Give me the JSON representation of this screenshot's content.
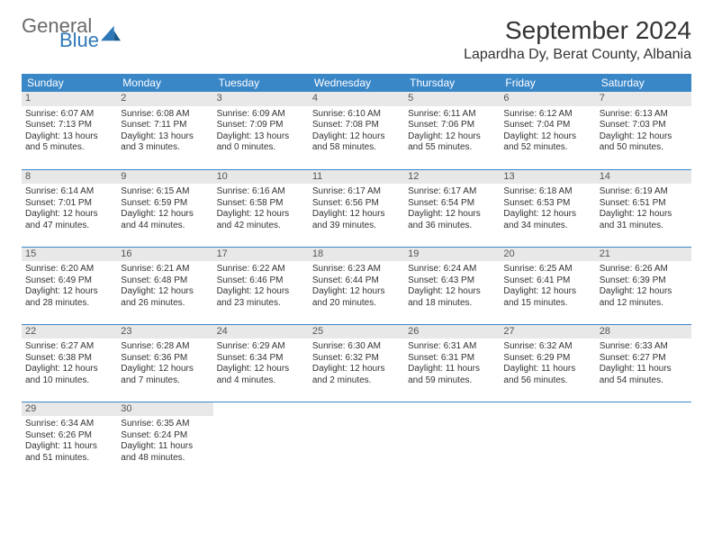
{
  "brand": {
    "word1": "General",
    "word2": "Blue"
  },
  "title": "September 2024",
  "location": "Lapardha Dy, Berat County, Albania",
  "colors": {
    "header_bg": "#3a87c8",
    "header_text": "#ffffff",
    "daynum_bg": "#e8e8e8",
    "rule": "#3a87c8",
    "brand_gray": "#6a6a6a",
    "brand_blue": "#2f78b8"
  },
  "weekdays": [
    "Sunday",
    "Monday",
    "Tuesday",
    "Wednesday",
    "Thursday",
    "Friday",
    "Saturday"
  ],
  "days": [
    {
      "n": 1,
      "sunrise": "6:07 AM",
      "sunset": "7:13 PM",
      "daylight": "13 hours and 5 minutes."
    },
    {
      "n": 2,
      "sunrise": "6:08 AM",
      "sunset": "7:11 PM",
      "daylight": "13 hours and 3 minutes."
    },
    {
      "n": 3,
      "sunrise": "6:09 AM",
      "sunset": "7:09 PM",
      "daylight": "13 hours and 0 minutes."
    },
    {
      "n": 4,
      "sunrise": "6:10 AM",
      "sunset": "7:08 PM",
      "daylight": "12 hours and 58 minutes."
    },
    {
      "n": 5,
      "sunrise": "6:11 AM",
      "sunset": "7:06 PM",
      "daylight": "12 hours and 55 minutes."
    },
    {
      "n": 6,
      "sunrise": "6:12 AM",
      "sunset": "7:04 PM",
      "daylight": "12 hours and 52 minutes."
    },
    {
      "n": 7,
      "sunrise": "6:13 AM",
      "sunset": "7:03 PM",
      "daylight": "12 hours and 50 minutes."
    },
    {
      "n": 8,
      "sunrise": "6:14 AM",
      "sunset": "7:01 PM",
      "daylight": "12 hours and 47 minutes."
    },
    {
      "n": 9,
      "sunrise": "6:15 AM",
      "sunset": "6:59 PM",
      "daylight": "12 hours and 44 minutes."
    },
    {
      "n": 10,
      "sunrise": "6:16 AM",
      "sunset": "6:58 PM",
      "daylight": "12 hours and 42 minutes."
    },
    {
      "n": 11,
      "sunrise": "6:17 AM",
      "sunset": "6:56 PM",
      "daylight": "12 hours and 39 minutes."
    },
    {
      "n": 12,
      "sunrise": "6:17 AM",
      "sunset": "6:54 PM",
      "daylight": "12 hours and 36 minutes."
    },
    {
      "n": 13,
      "sunrise": "6:18 AM",
      "sunset": "6:53 PM",
      "daylight": "12 hours and 34 minutes."
    },
    {
      "n": 14,
      "sunrise": "6:19 AM",
      "sunset": "6:51 PM",
      "daylight": "12 hours and 31 minutes."
    },
    {
      "n": 15,
      "sunrise": "6:20 AM",
      "sunset": "6:49 PM",
      "daylight": "12 hours and 28 minutes."
    },
    {
      "n": 16,
      "sunrise": "6:21 AM",
      "sunset": "6:48 PM",
      "daylight": "12 hours and 26 minutes."
    },
    {
      "n": 17,
      "sunrise": "6:22 AM",
      "sunset": "6:46 PM",
      "daylight": "12 hours and 23 minutes."
    },
    {
      "n": 18,
      "sunrise": "6:23 AM",
      "sunset": "6:44 PM",
      "daylight": "12 hours and 20 minutes."
    },
    {
      "n": 19,
      "sunrise": "6:24 AM",
      "sunset": "6:43 PM",
      "daylight": "12 hours and 18 minutes."
    },
    {
      "n": 20,
      "sunrise": "6:25 AM",
      "sunset": "6:41 PM",
      "daylight": "12 hours and 15 minutes."
    },
    {
      "n": 21,
      "sunrise": "6:26 AM",
      "sunset": "6:39 PM",
      "daylight": "12 hours and 12 minutes."
    },
    {
      "n": 22,
      "sunrise": "6:27 AM",
      "sunset": "6:38 PM",
      "daylight": "12 hours and 10 minutes."
    },
    {
      "n": 23,
      "sunrise": "6:28 AM",
      "sunset": "6:36 PM",
      "daylight": "12 hours and 7 minutes."
    },
    {
      "n": 24,
      "sunrise": "6:29 AM",
      "sunset": "6:34 PM",
      "daylight": "12 hours and 4 minutes."
    },
    {
      "n": 25,
      "sunrise": "6:30 AM",
      "sunset": "6:32 PM",
      "daylight": "12 hours and 2 minutes."
    },
    {
      "n": 26,
      "sunrise": "6:31 AM",
      "sunset": "6:31 PM",
      "daylight": "11 hours and 59 minutes."
    },
    {
      "n": 27,
      "sunrise": "6:32 AM",
      "sunset": "6:29 PM",
      "daylight": "11 hours and 56 minutes."
    },
    {
      "n": 28,
      "sunrise": "6:33 AM",
      "sunset": "6:27 PM",
      "daylight": "11 hours and 54 minutes."
    },
    {
      "n": 29,
      "sunrise": "6:34 AM",
      "sunset": "6:26 PM",
      "daylight": "11 hours and 51 minutes."
    },
    {
      "n": 30,
      "sunrise": "6:35 AM",
      "sunset": "6:24 PM",
      "daylight": "11 hours and 48 minutes."
    }
  ],
  "labels": {
    "sunrise": "Sunrise:",
    "sunset": "Sunset:",
    "daylight": "Daylight:"
  }
}
